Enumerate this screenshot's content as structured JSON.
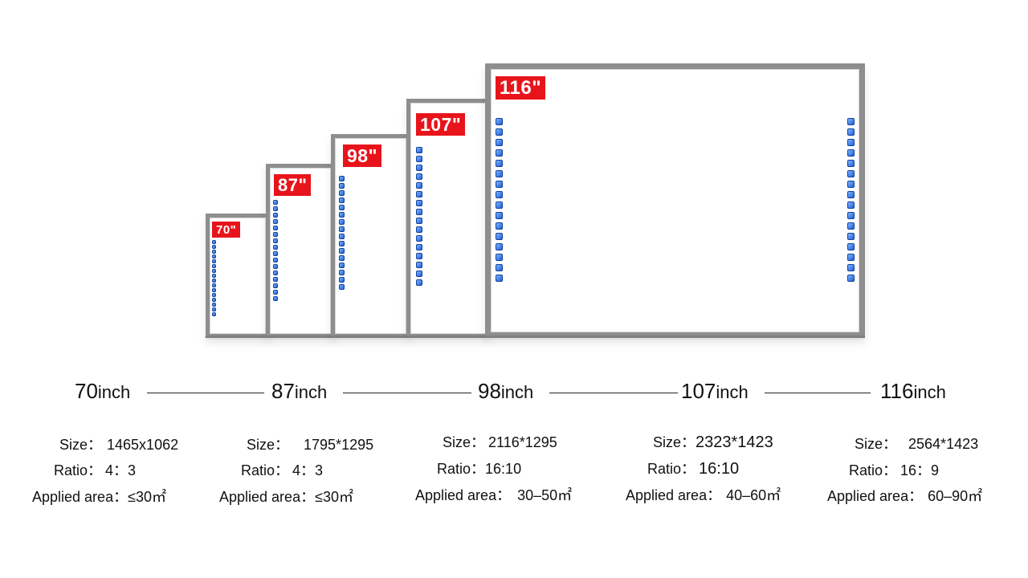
{
  "boards": [
    {
      "badge": "70\""
    },
    {
      "badge": "87\""
    },
    {
      "badge": "98\""
    },
    {
      "badge": "107\""
    },
    {
      "badge": "116\""
    }
  ],
  "models": [
    {
      "size_num": "70",
      "size_unit": "inch",
      "size_label": "Size：",
      "size_value": "1465x1062",
      "ratio_label": "Ratio：",
      "ratio_value": "4：3",
      "area_label": "Applied area：",
      "area_value": "≤30㎡"
    },
    {
      "size_num": "87",
      "size_unit": "inch",
      "size_label": "Size：",
      "size_value": "1795*1295",
      "ratio_label": "Ratio：",
      "ratio_value": "4：3",
      "area_label": "Applied area：",
      "area_value": "≤30㎡"
    },
    {
      "size_num": "98",
      "size_unit": "inch",
      "size_label": "Size：",
      "size_value": "2116*1295",
      "ratio_label": "Ratio：",
      "ratio_value": "16:10",
      "area_label": "Applied area：",
      "area_value": "30–50㎡"
    },
    {
      "size_num": "107",
      "size_unit": "inch",
      "size_label": "Size：",
      "size_value": "2323*1423",
      "ratio_label": "Ratio：",
      "ratio_value": "16:10",
      "area_label": "Applied area：",
      "area_value": "40–60㎡"
    },
    {
      "size_num": "116",
      "size_unit": "inch",
      "size_label": "Size：",
      "size_value": "2564*1423",
      "ratio_label": "Ratio：",
      "ratio_value": "16：9",
      "area_label": "Applied area：",
      "area_value": "60–90㎡"
    }
  ],
  "colors": {
    "badge": "#e8141b",
    "frame": "#8e8e8e",
    "button": "#1e5fd8"
  }
}
